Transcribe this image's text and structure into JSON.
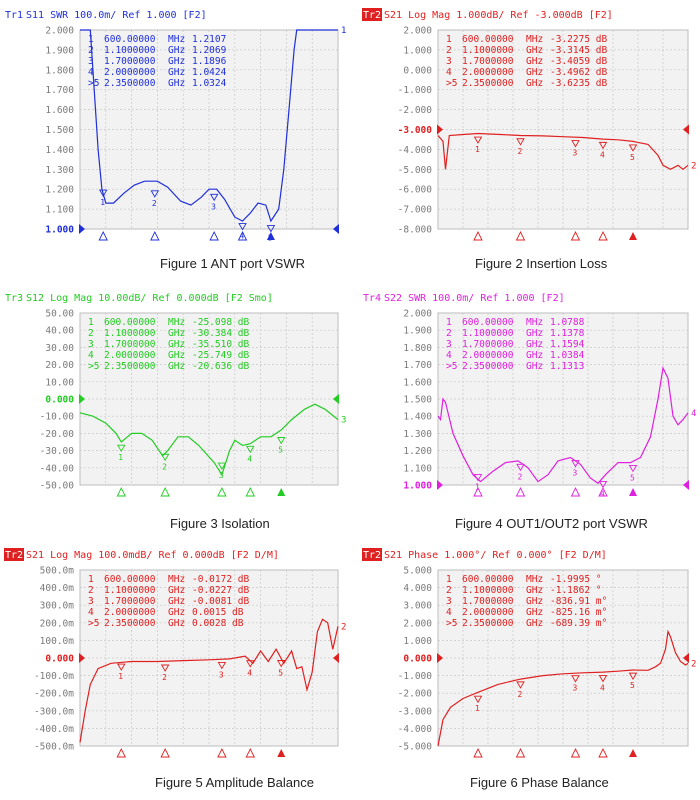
{
  "charts": [
    {
      "id": "p1",
      "color": "#1f2fd9",
      "badge": false,
      "header": "Tr1 S11 SWR 100.0m/ Ref 1.000 [F2]",
      "ytick_labels": [
        "2.000",
        "1.900",
        "1.800",
        "1.700",
        "1.600",
        "1.500",
        "1.400",
        "1.300",
        "1.200",
        "1.100",
        "1.000"
      ],
      "ymin": 1.0,
      "ymax": 2.0,
      "ref_row": 10,
      "ref_value": 1.0,
      "end_label": "1",
      "markers": [
        {
          "num": "1",
          "freq": "600.00000",
          "unit": "MHz",
          "value": "1.2107",
          "x": 0.09,
          "y": 1.2107,
          "active": false
        },
        {
          "num": "2",
          "freq": "1.1000000",
          "unit": "GHz",
          "value": "1.2069",
          "x": 0.29,
          "y": 1.2069,
          "active": false
        },
        {
          "num": "3",
          "freq": "1.7000000",
          "unit": "GHz",
          "value": "1.1896",
          "x": 0.52,
          "y": 1.1896,
          "active": false
        },
        {
          "num": "4",
          "freq": "2.0000000",
          "unit": "GHz",
          "value": "1.0424",
          "x": 0.63,
          "y": 1.0424,
          "active": false
        },
        {
          "num": ">5",
          "freq": "2.3500000",
          "unit": "GHz",
          "value": "1.0324",
          "x": 0.74,
          "y": 1.0324,
          "active": true
        }
      ],
      "trace": [
        [
          0.0,
          2.0
        ],
        [
          0.04,
          2.0
        ],
        [
          0.055,
          1.7
        ],
        [
          0.07,
          1.4
        ],
        [
          0.085,
          1.2
        ],
        [
          0.1,
          1.13
        ],
        [
          0.13,
          1.13
        ],
        [
          0.17,
          1.18
        ],
        [
          0.21,
          1.22
        ],
        [
          0.25,
          1.24
        ],
        [
          0.3,
          1.24
        ],
        [
          0.34,
          1.21
        ],
        [
          0.39,
          1.14
        ],
        [
          0.43,
          1.12
        ],
        [
          0.47,
          1.16
        ],
        [
          0.5,
          1.2
        ],
        [
          0.53,
          1.2
        ],
        [
          0.56,
          1.15
        ],
        [
          0.6,
          1.06
        ],
        [
          0.63,
          1.04
        ],
        [
          0.66,
          1.08
        ],
        [
          0.69,
          1.13
        ],
        [
          0.72,
          1.12
        ],
        [
          0.74,
          1.04
        ],
        [
          0.77,
          1.1
        ],
        [
          0.79,
          1.3
        ],
        [
          0.81,
          1.6
        ],
        [
          0.83,
          1.9
        ],
        [
          0.84,
          2.0
        ],
        [
          1.0,
          2.0
        ]
      ],
      "caption": "Figure 1  ANT port VSWR"
    },
    {
      "id": "p2",
      "color": "#e02020",
      "badge": true,
      "header": "Tr2 S21 Log Mag 1.000dB/ Ref -3.000dB [F2]",
      "ytick_labels": [
        "2.000",
        "1.000",
        "0.000",
        "-1.000",
        "-2.000",
        "-3.000",
        "-4.000",
        "-5.000",
        "-6.000",
        "-7.000",
        "-8.000"
      ],
      "ymin": -8.0,
      "ymax": 2.0,
      "ref_row": 5,
      "ref_value": -3.0,
      "end_label": "2",
      "markers": [
        {
          "num": "1",
          "freq": "600.00000",
          "unit": "MHz",
          "value": "-3.2275 dB",
          "x": 0.16,
          "y": -3.2275,
          "active": false
        },
        {
          "num": "2",
          "freq": "1.1000000",
          "unit": "GHz",
          "value": "-3.3145 dB",
          "x": 0.33,
          "y": -3.3145,
          "active": false
        },
        {
          "num": "3",
          "freq": "1.7000000",
          "unit": "GHz",
          "value": "-3.4059 dB",
          "x": 0.55,
          "y": -3.4059,
          "active": false
        },
        {
          "num": "4",
          "freq": "2.0000000",
          "unit": "GHz",
          "value": "-3.4962 dB",
          "x": 0.66,
          "y": -3.4962,
          "active": false
        },
        {
          "num": ">5",
          "freq": "2.3500000",
          "unit": "GHz",
          "value": "-3.6235 dB",
          "x": 0.78,
          "y": -3.6235,
          "active": true
        }
      ],
      "trace": [
        [
          0.0,
          -3.3
        ],
        [
          0.02,
          -3.6
        ],
        [
          0.03,
          -5.0
        ],
        [
          0.045,
          -3.3
        ],
        [
          0.1,
          -3.25
        ],
        [
          0.16,
          -3.2
        ],
        [
          0.25,
          -3.25
        ],
        [
          0.33,
          -3.3
        ],
        [
          0.42,
          -3.32
        ],
        [
          0.5,
          -3.36
        ],
        [
          0.58,
          -3.4
        ],
        [
          0.66,
          -3.48
        ],
        [
          0.72,
          -3.52
        ],
        [
          0.78,
          -3.6
        ],
        [
          0.84,
          -3.75
        ],
        [
          0.88,
          -4.3
        ],
        [
          0.9,
          -4.8
        ],
        [
          0.93,
          -5.0
        ],
        [
          0.96,
          -4.8
        ],
        [
          0.98,
          -5.0
        ],
        [
          1.0,
          -4.8
        ]
      ],
      "caption": "Figure 2  Insertion Loss"
    },
    {
      "id": "p3",
      "color": "#22cc22",
      "badge": false,
      "header": "Tr3 S12 Log Mag 10.00dB/ Ref 0.000dB [F2 Smo]",
      "ytick_labels": [
        "50.00",
        "40.00",
        "30.00",
        "20.00",
        "10.00",
        "0.000",
        "-10.00",
        "-20.00",
        "-30.00",
        "-40.00",
        "-50.00"
      ],
      "ymin": -50.0,
      "ymax": 50.0,
      "ref_row": 5,
      "ref_value": 0.0,
      "end_label": "3",
      "markers": [
        {
          "num": "1",
          "freq": "600.00000",
          "unit": "MHz",
          "value": "-25.098 dB",
          "x": 0.16,
          "y": -25.098,
          "active": false
        },
        {
          "num": "2",
          "freq": "1.1000000",
          "unit": "GHz",
          "value": "-30.384 dB",
          "x": 0.33,
          "y": -30.384,
          "active": false
        },
        {
          "num": "3",
          "freq": "1.7000000",
          "unit": "GHz",
          "value": "-35.510 dB",
          "x": 0.55,
          "y": -35.51,
          "active": false
        },
        {
          "num": "4",
          "freq": "2.0000000",
          "unit": "GHz",
          "value": "-25.749 dB",
          "x": 0.66,
          "y": -25.749,
          "active": false
        },
        {
          "num": ">5",
          "freq": "2.3500000",
          "unit": "GHz",
          "value": "-20.636 dB",
          "x": 0.78,
          "y": -20.636,
          "active": true
        }
      ],
      "trace": [
        [
          0.0,
          -8
        ],
        [
          0.05,
          -10
        ],
        [
          0.1,
          -14
        ],
        [
          0.14,
          -20
        ],
        [
          0.16,
          -25
        ],
        [
          0.2,
          -20
        ],
        [
          0.24,
          -20
        ],
        [
          0.28,
          -24
        ],
        [
          0.32,
          -33
        ],
        [
          0.34,
          -30
        ],
        [
          0.38,
          -22
        ],
        [
          0.42,
          -22
        ],
        [
          0.46,
          -27
        ],
        [
          0.52,
          -37
        ],
        [
          0.55,
          -44
        ],
        [
          0.58,
          -30
        ],
        [
          0.6,
          -24
        ],
        [
          0.63,
          -27
        ],
        [
          0.66,
          -26
        ],
        [
          0.7,
          -22
        ],
        [
          0.74,
          -22
        ],
        [
          0.78,
          -18
        ],
        [
          0.82,
          -12
        ],
        [
          0.87,
          -6
        ],
        [
          0.91,
          -3
        ],
        [
          0.95,
          -6
        ],
        [
          1.0,
          -12
        ]
      ],
      "caption": "Figure 3  Isolation"
    },
    {
      "id": "p4",
      "color": "#e020e0",
      "badge": false,
      "header": "Tr4 S22 SWR 100.0m/ Ref 1.000 [F2]",
      "ytick_labels": [
        "2.000",
        "1.900",
        "1.800",
        "1.700",
        "1.600",
        "1.500",
        "1.400",
        "1.300",
        "1.200",
        "1.100",
        "1.000"
      ],
      "ymin": 1.0,
      "ymax": 2.0,
      "ref_row": 10,
      "ref_value": 1.0,
      "end_label": "4",
      "markers": [
        {
          "num": "1",
          "freq": "600.00000",
          "unit": "MHz",
          "value": "1.0788",
          "x": 0.16,
          "y": 1.0788,
          "active": false
        },
        {
          "num": "2",
          "freq": "1.1000000",
          "unit": "GHz",
          "value": "1.1378",
          "x": 0.33,
          "y": 1.1378,
          "active": false
        },
        {
          "num": "3",
          "freq": "1.7000000",
          "unit": "GHz",
          "value": "1.1594",
          "x": 0.55,
          "y": 1.1594,
          "active": false
        },
        {
          "num": "4",
          "freq": "2.0000000",
          "unit": "GHz",
          "value": "1.0384",
          "x": 0.66,
          "y": 1.0384,
          "active": false
        },
        {
          "num": ">5",
          "freq": "2.3500000",
          "unit": "GHz",
          "value": "1.1313",
          "x": 0.78,
          "y": 1.1313,
          "active": true
        }
      ],
      "trace": [
        [
          0.0,
          1.4
        ],
        [
          0.01,
          1.38
        ],
        [
          0.02,
          1.5
        ],
        [
          0.03,
          1.48
        ],
        [
          0.06,
          1.3
        ],
        [
          0.1,
          1.17
        ],
        [
          0.14,
          1.06
        ],
        [
          0.17,
          1.02
        ],
        [
          0.22,
          1.08
        ],
        [
          0.27,
          1.13
        ],
        [
          0.32,
          1.14
        ],
        [
          0.36,
          1.1
        ],
        [
          0.4,
          1.02
        ],
        [
          0.44,
          1.06
        ],
        [
          0.48,
          1.14
        ],
        [
          0.53,
          1.16
        ],
        [
          0.57,
          1.12
        ],
        [
          0.61,
          1.04
        ],
        [
          0.64,
          1.01
        ],
        [
          0.67,
          1.06
        ],
        [
          0.72,
          1.13
        ],
        [
          0.77,
          1.13
        ],
        [
          0.81,
          1.16
        ],
        [
          0.85,
          1.28
        ],
        [
          0.88,
          1.5
        ],
        [
          0.9,
          1.68
        ],
        [
          0.92,
          1.62
        ],
        [
          0.94,
          1.4
        ],
        [
          0.96,
          1.35
        ],
        [
          0.98,
          1.38
        ],
        [
          1.0,
          1.42
        ]
      ],
      "caption": "Figure 4  OUT1/OUT2 port VSWR"
    },
    {
      "id": "p5",
      "color": "#e02020",
      "badge": true,
      "header": "Tr2 S21 Log Mag 100.0mdB/ Ref 0.000dB [F2 D/M]",
      "ytick_labels": [
        "500.0m",
        "400.0m",
        "300.0m",
        "200.0m",
        "100.0m",
        "0.000",
        "-100.0m",
        "-200.0m",
        "-300.0m",
        "-400.0m",
        "-500.0m"
      ],
      "ymin": -0.5,
      "ymax": 0.5,
      "ref_row": 5,
      "ref_value": 0.0,
      "end_label": "2",
      "markers": [
        {
          "num": "1",
          "freq": "600.00000",
          "unit": "MHz",
          "value": "-0.0172 dB",
          "x": 0.16,
          "y": -0.0172,
          "active": false
        },
        {
          "num": "2",
          "freq": "1.1000000",
          "unit": "GHz",
          "value": "-0.0227 dB",
          "x": 0.33,
          "y": -0.0227,
          "active": false
        },
        {
          "num": "3",
          "freq": "1.7000000",
          "unit": "GHz",
          "value": "-0.0081 dB",
          "x": 0.55,
          "y": -0.0081,
          "active": false
        },
        {
          "num": "4",
          "freq": "2.0000000",
          "unit": "GHz",
          "value": "0.0015 dB",
          "x": 0.66,
          "y": 0.0015,
          "active": false
        },
        {
          "num": ">5",
          "freq": "2.3500000",
          "unit": "GHz",
          "value": "0.0028 dB",
          "x": 0.78,
          "y": 0.0028,
          "active": true
        }
      ],
      "trace": [
        [
          0.0,
          -0.48
        ],
        [
          0.02,
          -0.3
        ],
        [
          0.04,
          -0.15
        ],
        [
          0.07,
          -0.06
        ],
        [
          0.12,
          -0.03
        ],
        [
          0.2,
          -0.02
        ],
        [
          0.3,
          -0.02
        ],
        [
          0.4,
          -0.015
        ],
        [
          0.5,
          -0.01
        ],
        [
          0.58,
          -0.005
        ],
        [
          0.64,
          0.01
        ],
        [
          0.67,
          -0.03
        ],
        [
          0.7,
          0.04
        ],
        [
          0.73,
          -0.02
        ],
        [
          0.76,
          0.05
        ],
        [
          0.79,
          -0.03
        ],
        [
          0.82,
          0.04
        ],
        [
          0.84,
          -0.06
        ],
        [
          0.86,
          -0.05
        ],
        [
          0.88,
          -0.18
        ],
        [
          0.9,
          -0.08
        ],
        [
          0.92,
          0.15
        ],
        [
          0.94,
          0.22
        ],
        [
          0.96,
          0.2
        ],
        [
          0.98,
          0.05
        ],
        [
          1.0,
          0.18
        ]
      ],
      "caption": "Figure 5  Amplitude Balance"
    },
    {
      "id": "p6",
      "color": "#e02020",
      "badge": true,
      "header": "Tr2 S21 Phase 1.000°/ Ref 0.000° [F2 D/M]",
      "ytick_labels": [
        "5.000",
        "4.000",
        "3.000",
        "2.000",
        "1.000",
        "0.000",
        "-1.000",
        "-2.000",
        "-3.000",
        "-4.000",
        "-5.000"
      ],
      "ymin": -5.0,
      "ymax": 5.0,
      "ref_row": 5,
      "ref_value": 0.0,
      "end_label": "2",
      "markers": [
        {
          "num": "1",
          "freq": "600.00000",
          "unit": "MHz",
          "value": "-1.9995 °",
          "x": 0.16,
          "y": -1.9995,
          "active": false
        },
        {
          "num": "2",
          "freq": "1.1000000",
          "unit": "GHz",
          "value": "-1.1862 °",
          "x": 0.33,
          "y": -1.1862,
          "active": false
        },
        {
          "num": "3",
          "freq": "1.7000000",
          "unit": "GHz",
          "value": "-836.91 m°",
          "x": 0.55,
          "y": -0.83691,
          "active": false
        },
        {
          "num": "4",
          "freq": "2.0000000",
          "unit": "GHz",
          "value": "-825.16 m°",
          "x": 0.66,
          "y": -0.82516,
          "active": false
        },
        {
          "num": ">5",
          "freq": "2.3500000",
          "unit": "GHz",
          "value": "-689.39 m°",
          "x": 0.78,
          "y": -0.68939,
          "active": true
        }
      ],
      "trace": [
        [
          0.0,
          -5.0
        ],
        [
          0.02,
          -3.5
        ],
        [
          0.05,
          -2.8
        ],
        [
          0.1,
          -2.3
        ],
        [
          0.16,
          -1.95
        ],
        [
          0.24,
          -1.5
        ],
        [
          0.33,
          -1.2
        ],
        [
          0.42,
          -1.0
        ],
        [
          0.5,
          -0.9
        ],
        [
          0.58,
          -0.84
        ],
        [
          0.66,
          -0.8
        ],
        [
          0.72,
          -0.75
        ],
        [
          0.78,
          -0.68
        ],
        [
          0.84,
          -0.7
        ],
        [
          0.87,
          -0.5
        ],
        [
          0.89,
          -0.3
        ],
        [
          0.91,
          0.5
        ],
        [
          0.92,
          1.5
        ],
        [
          0.93,
          1.2
        ],
        [
          0.95,
          0.3
        ],
        [
          0.97,
          -0.2
        ],
        [
          0.99,
          -0.4
        ],
        [
          1.0,
          -0.3
        ]
      ],
      "caption": "Figure 6  Phase Balance"
    }
  ]
}
